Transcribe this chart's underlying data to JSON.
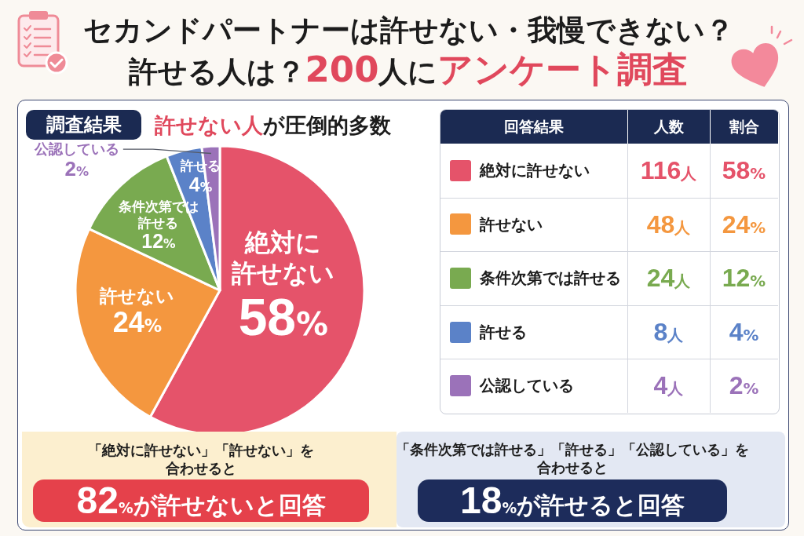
{
  "chart_data": [
    {
      "type": "pie",
      "title": "セカンドパートナーは許せない・我慢できない？許せる人は？**200**人に**アンケート調査**",
      "subtitle": "**許せない人**が圧倒的多数",
      "annotations": [
        "調査結果"
      ],
      "categories": [
        "絶対に許せない",
        "許せない",
        "条件次第では許せる",
        "許せる",
        "公認している"
      ],
      "values": [
        58,
        24,
        12,
        4,
        2
      ],
      "value_labels": [
        "58%",
        "24%",
        "12%",
        "4%",
        "2%"
      ],
      "colors": [
        "#e5536a",
        "#f4973f",
        "#79aa50",
        "#5b82c8",
        "#9b72b9"
      ]
    },
    {
      "type": "other",
      "title": "回答結果",
      "categories": [
        "絶対に許せない",
        "許せない",
        "条件次第では許せる",
        "許せる",
        "公認している"
      ],
      "colors": [
        "#e5536a",
        "#f4973f",
        "#79aa50",
        "#5b82c8",
        "#9b72b9"
      ],
      "series": [
        {
          "name": "人数",
          "values": [
            116,
            48,
            24,
            8,
            4
          ],
          "value_labels": [
            "116人",
            "48人",
            "24人",
            "8人",
            "4人"
          ]
        },
        {
          "name": "割合",
          "values": [
            58,
            24,
            12,
            4,
            2
          ],
          "value_labels": [
            "58%",
            "24%",
            "12%",
            "4%",
            "2%"
          ]
        }
      ]
    },
    {
      "type": "other",
      "title": "「絶対に許せない」「許せない」を合わせると",
      "annotations": [
        "**82**%が許せないと回答"
      ]
    },
    {
      "type": "other",
      "title": "「条件次第では許せる」「許せる」「公認している」を合わせると",
      "annotations": [
        "**18**%が許せると回答"
      ]
    }
  ]
}
